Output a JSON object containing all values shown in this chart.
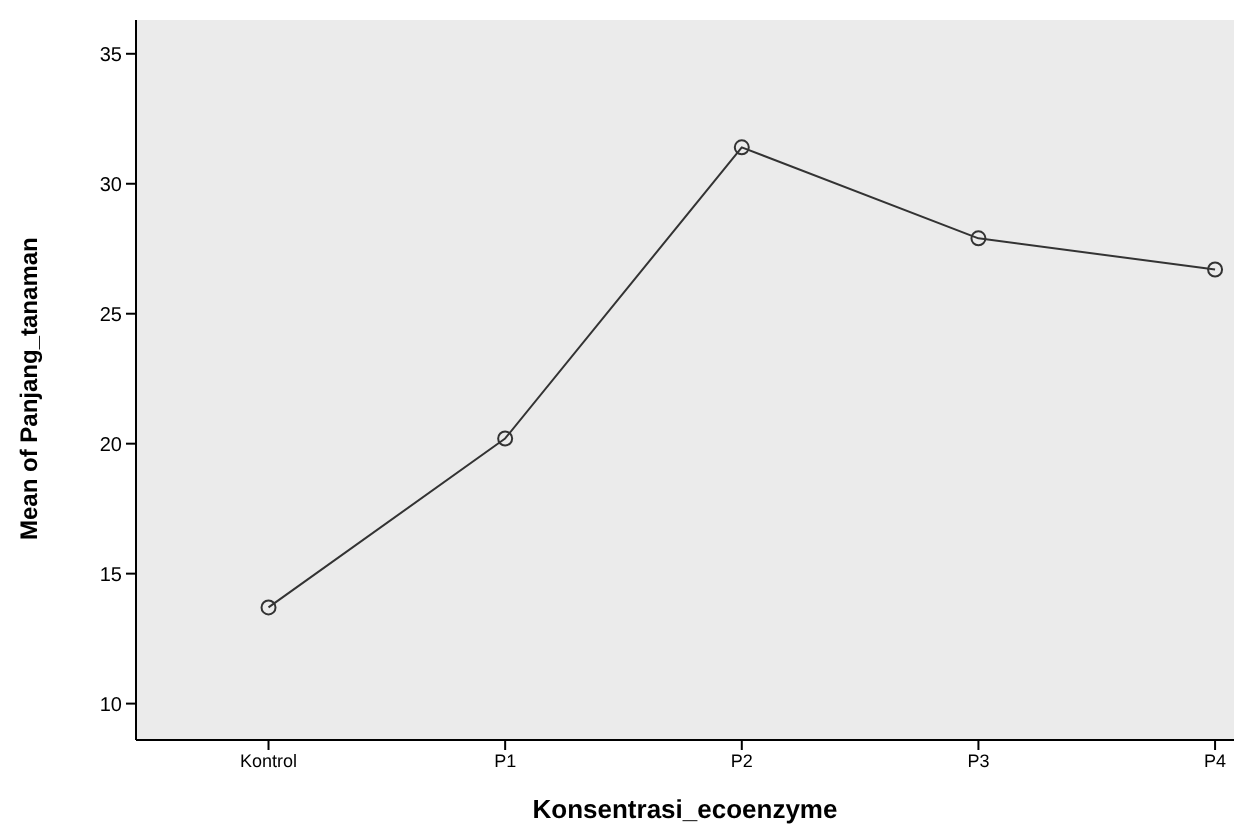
{
  "chart_data": {
    "type": "line",
    "xlabel": "Konsentrasi_ecoenzyme",
    "ylabel": "Mean of Panjang_tanaman",
    "categories": [
      "Kontrol",
      "P1",
      "P2",
      "P3",
      "P4"
    ],
    "series": [
      {
        "color": "#333333",
        "values": [
          13.7,
          20.2,
          31.4,
          27.9,
          26.7
        ]
      }
    ],
    "ylim": [
      8.6,
      36.3
    ],
    "yticks": [
      10,
      15,
      20,
      25,
      30,
      35
    ],
    "grid": false,
    "legend": false,
    "marker": "circle",
    "line_style": "solid"
  }
}
